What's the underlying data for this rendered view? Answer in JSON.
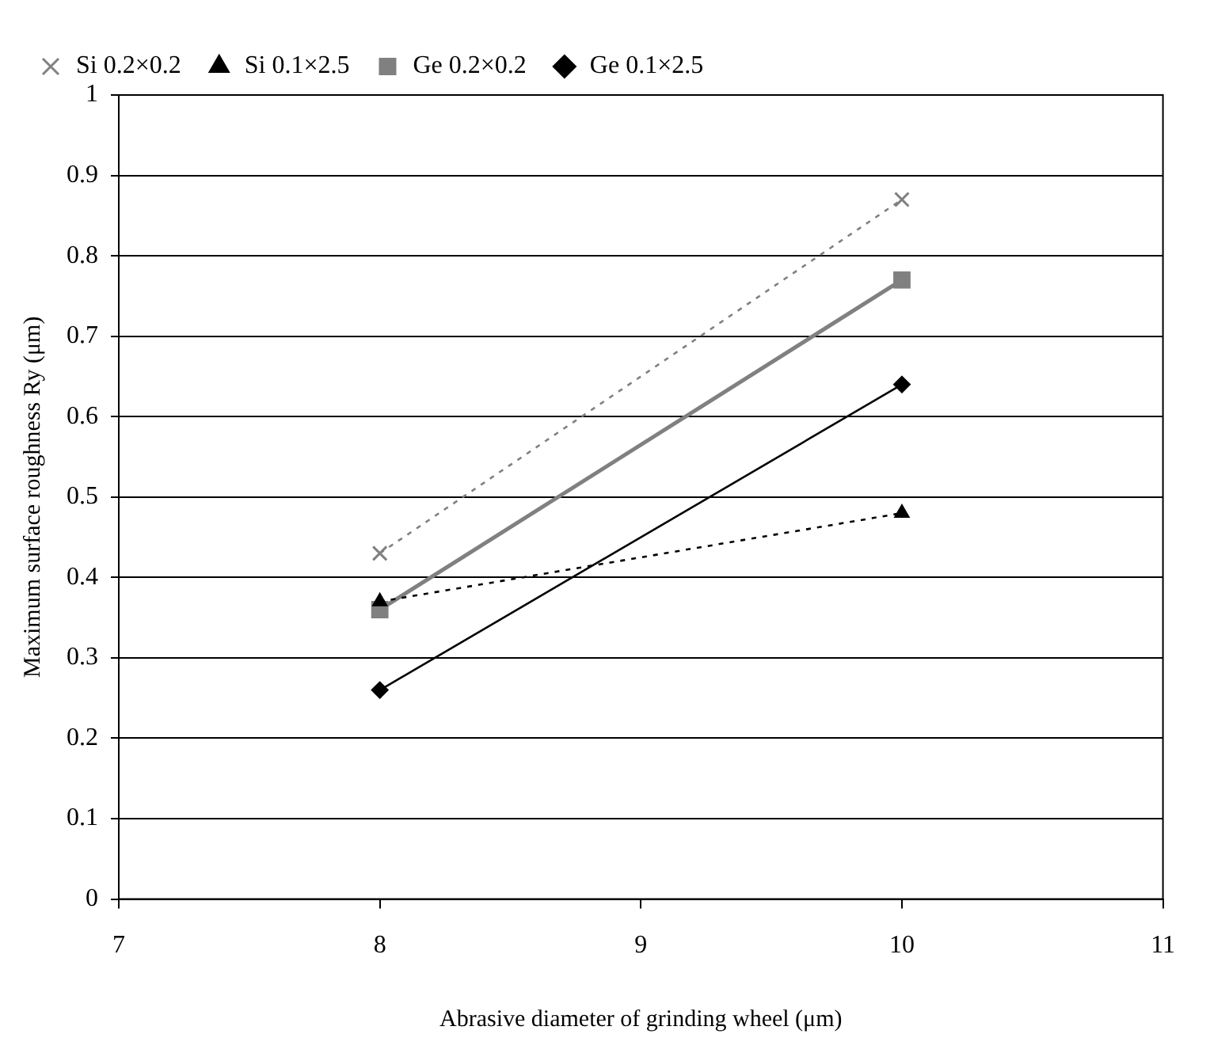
{
  "chart_data": {
    "type": "line",
    "xlabel": "Abrasive diameter of grinding wheel (μm)",
    "ylabel": "Maximum surface roughness Ry (μm)",
    "x": [
      8,
      10
    ],
    "xlim": [
      7,
      11
    ],
    "xticks": [
      7,
      8,
      9,
      10,
      11
    ],
    "ylim": [
      0,
      1
    ],
    "yticks": [
      0,
      0.1,
      0.2,
      0.3,
      0.4,
      0.5,
      0.6,
      0.7,
      0.8,
      0.9,
      1
    ],
    "grid": "y",
    "legend": "top left",
    "series": [
      {
        "name": "Ge 0.1×2.5",
        "color": "#000000",
        "values": [
          0.26,
          0.64
        ],
        "marker": "diamond",
        "line_style": "solid"
      },
      {
        "name": "Ge 0.2×0.2",
        "color": "#808080",
        "values": [
          0.36,
          0.77
        ],
        "marker": "square",
        "line_style": "solid"
      },
      {
        "name": "Si 0.1×2.5",
        "color": "#000000",
        "values": [
          0.37,
          0.48
        ],
        "marker": "triangle",
        "line_style": "dotted"
      },
      {
        "name": "Si 0.2×0.2",
        "color": "#808080",
        "values": [
          0.43,
          0.87
        ],
        "marker": "cross",
        "line_style": "dotted"
      }
    ]
  }
}
